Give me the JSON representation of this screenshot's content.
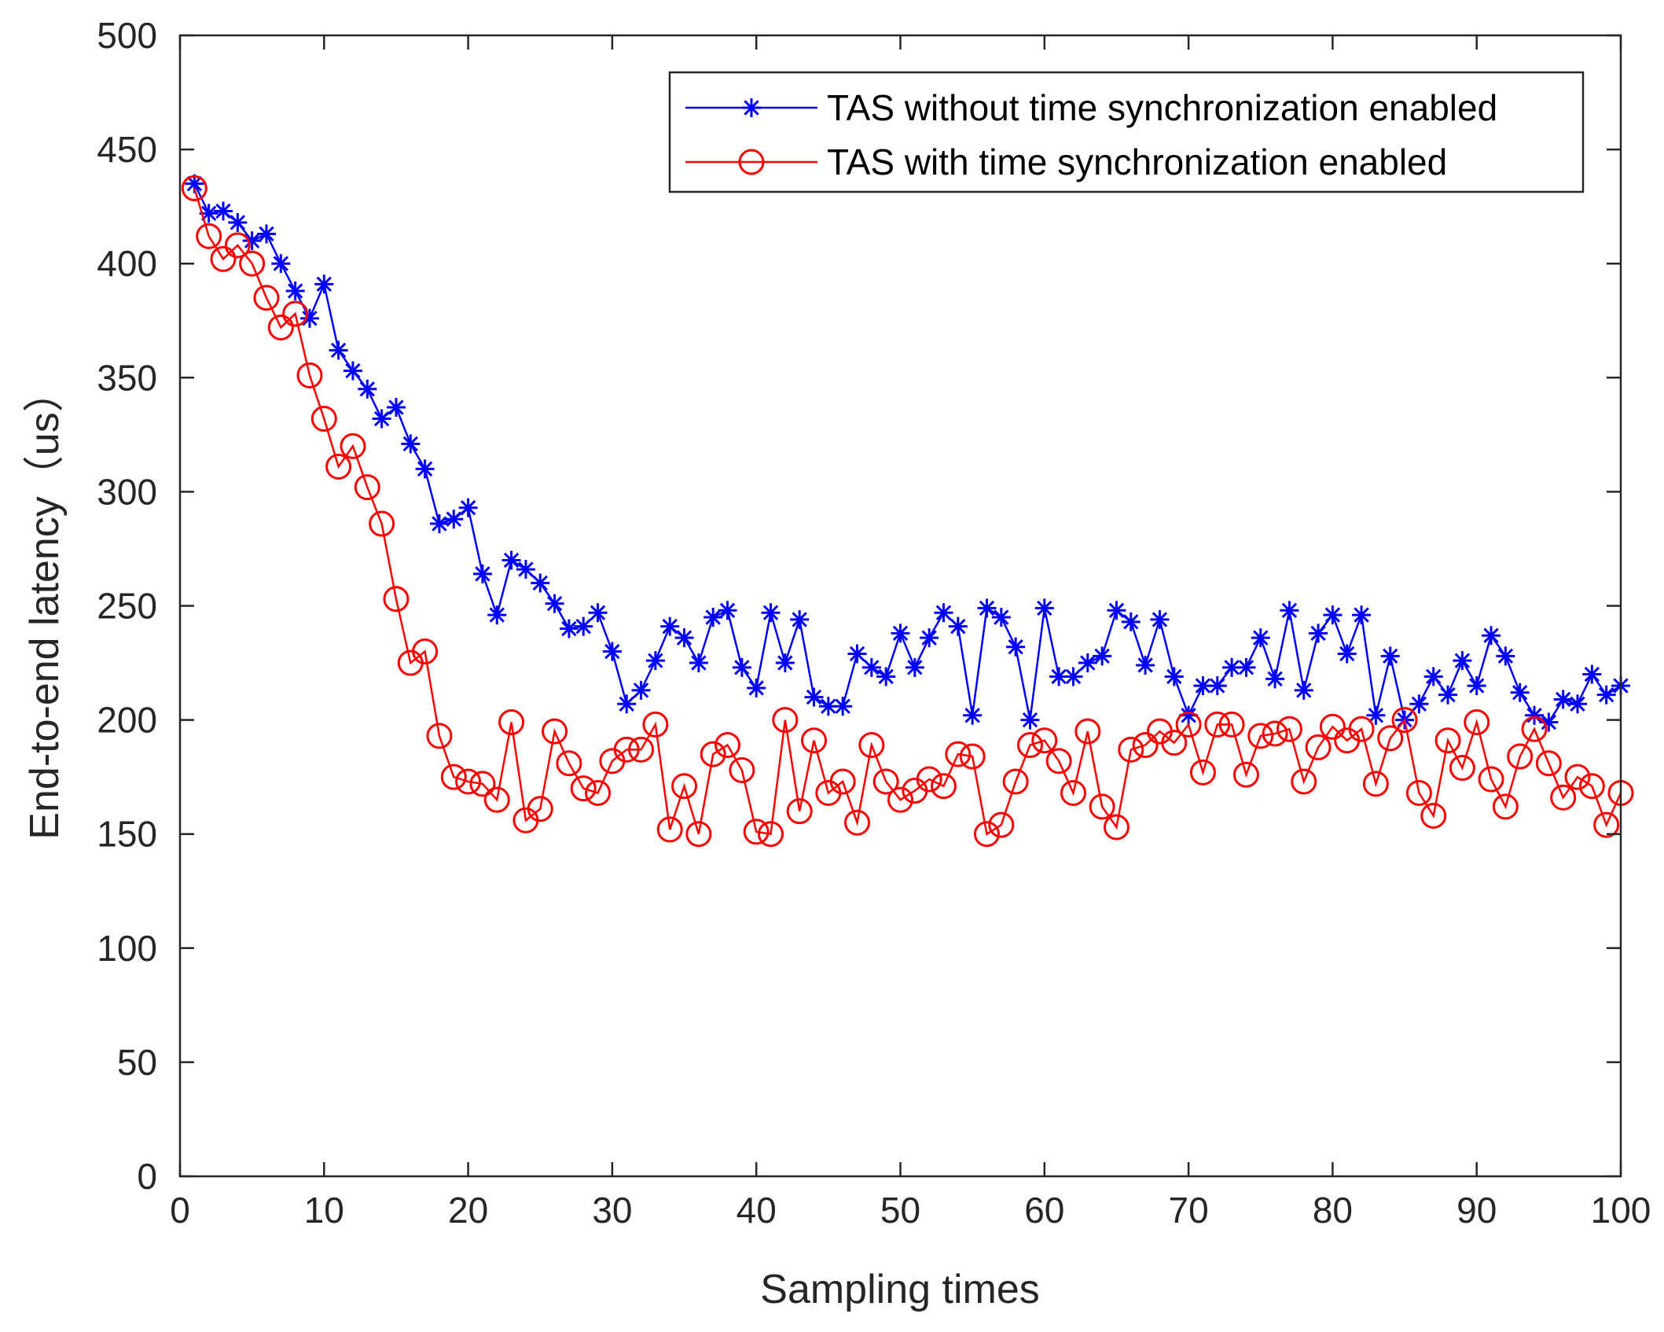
{
  "chart_data": {
    "type": "line",
    "title": "",
    "xlabel": "Sampling times",
    "ylabel": "End-to-end latency（us）",
    "xlim": [
      0,
      100
    ],
    "ylim": [
      0,
      500
    ],
    "xticks": [
      0,
      10,
      20,
      30,
      40,
      50,
      60,
      70,
      80,
      90,
      100
    ],
    "yticks": [
      0,
      50,
      100,
      150,
      200,
      250,
      300,
      350,
      400,
      450,
      500
    ],
    "grid": false,
    "legend_position": "top-right",
    "x": [
      1,
      2,
      3,
      4,
      5,
      6,
      7,
      8,
      9,
      10,
      11,
      12,
      13,
      14,
      15,
      16,
      17,
      18,
      19,
      20,
      21,
      22,
      23,
      24,
      25,
      26,
      27,
      28,
      29,
      30,
      31,
      32,
      33,
      34,
      35,
      36,
      37,
      38,
      39,
      40,
      41,
      42,
      43,
      44,
      45,
      46,
      47,
      48,
      49,
      50,
      51,
      52,
      53,
      54,
      55,
      56,
      57,
      58,
      59,
      60,
      61,
      62,
      63,
      64,
      65,
      66,
      67,
      68,
      69,
      70,
      71,
      72,
      73,
      74,
      75,
      76,
      77,
      78,
      79,
      80,
      81,
      82,
      83,
      84,
      85,
      86,
      87,
      88,
      89,
      90,
      91,
      92,
      93,
      94,
      95,
      96,
      97,
      98,
      99,
      100
    ],
    "series": [
      {
        "name": "TAS without time synchronization enabled",
        "color": "#0000ff",
        "marker": "asterisk",
        "values": [
          435,
          422,
          423,
          418,
          410,
          413,
          400,
          388,
          376,
          391,
          362,
          353,
          345,
          332,
          337,
          321,
          310,
          286,
          288,
          293,
          264,
          246,
          270,
          266,
          260,
          251,
          240,
          241,
          247,
          230,
          207,
          213,
          226,
          241,
          236,
          225,
          245,
          248,
          223,
          214,
          247,
          225,
          244,
          210,
          206,
          206,
          229,
          223,
          219,
          238,
          223,
          236,
          247,
          241,
          202,
          249,
          245,
          232,
          200,
          249,
          219,
          219,
          225,
          228,
          248,
          243,
          224,
          244,
          219,
          202,
          215,
          215,
          223,
          223,
          236,
          218,
          248,
          213,
          238,
          246,
          229,
          246,
          202,
          228,
          200,
          207,
          219,
          211,
          226,
          215,
          237,
          228,
          212,
          202,
          199,
          209,
          207,
          220,
          211,
          215
        ]
      },
      {
        "name": "TAS with time synchronization enabled",
        "color": "#ff0000",
        "marker": "circle",
        "values": [
          433,
          412,
          402,
          408,
          400,
          385,
          372,
          378,
          351,
          332,
          311,
          320,
          302,
          286,
          253,
          225,
          230,
          193,
          175,
          173,
          172,
          165,
          199,
          156,
          161,
          195,
          181,
          170,
          168,
          182,
          187,
          187,
          198,
          152,
          171,
          150,
          185,
          189,
          178,
          151,
          150,
          200,
          160,
          191,
          168,
          173,
          155,
          189,
          173,
          165,
          169,
          174,
          171,
          185,
          184,
          150,
          154,
          173,
          189,
          191,
          182,
          168,
          195,
          162,
          153,
          187,
          189,
          195,
          190,
          198,
          177,
          198,
          198,
          176,
          193,
          194,
          196,
          173,
          188,
          197,
          191,
          196,
          172,
          192,
          200,
          168,
          158,
          191,
          179,
          199,
          174,
          162,
          184,
          196,
          181,
          166,
          175,
          171,
          154,
          168
        ]
      }
    ]
  }
}
